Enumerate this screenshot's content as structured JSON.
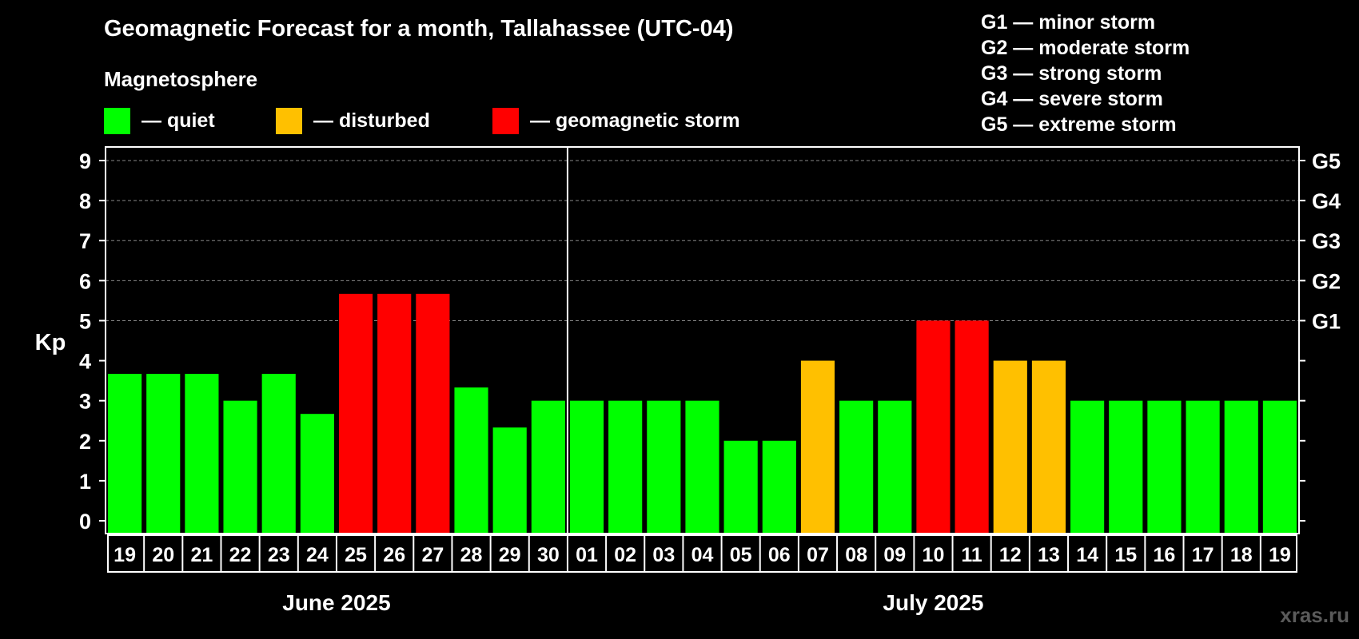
{
  "title": "Geomagnetic Forecast for a month, Tallahassee (UTC-04)",
  "subtitle": "Magnetosphere",
  "legend": [
    {
      "label": "— quiet",
      "color": "#00ff00"
    },
    {
      "label": "— disturbed",
      "color": "#ffc000"
    },
    {
      "label": "— geomagnetic storm",
      "color": "#ff0000"
    }
  ],
  "g_scale_legend": [
    "G1 — minor storm",
    "G2 — moderate storm",
    "G3 — strong storm",
    "G4 — severe storm",
    "G5 — extreme storm"
  ],
  "watermark": "xras.ru",
  "colors": {
    "quiet": "#00ff00",
    "disturbed": "#ffc000",
    "storm": "#ff0000",
    "background": "#000000",
    "grid": "#888888"
  },
  "chart_data": {
    "type": "bar",
    "ylabel": "Kp",
    "ylim": [
      0,
      9
    ],
    "yticks": [
      "0",
      "1",
      "2",
      "3",
      "4",
      "5",
      "6",
      "7",
      "8",
      "9"
    ],
    "right_axis_labels": [
      {
        "kp": 5,
        "label": "G1"
      },
      {
        "kp": 6,
        "label": "G2"
      },
      {
        "kp": 7,
        "label": "G3"
      },
      {
        "kp": 8,
        "label": "G4"
      },
      {
        "kp": 9,
        "label": "G5"
      }
    ],
    "grid": true,
    "months": [
      {
        "label": "June 2025",
        "first_index": 0,
        "count": 12
      },
      {
        "label": "July 2025",
        "first_index": 12,
        "count": 19
      }
    ],
    "categories": [
      "19",
      "20",
      "21",
      "22",
      "23",
      "24",
      "25",
      "26",
      "27",
      "28",
      "29",
      "30",
      "01",
      "02",
      "03",
      "04",
      "05",
      "06",
      "07",
      "08",
      "09",
      "10",
      "11",
      "12",
      "13",
      "14",
      "15",
      "16",
      "17",
      "18",
      "19"
    ],
    "values": [
      3.67,
      3.67,
      3.67,
      3.0,
      3.67,
      2.67,
      5.67,
      5.67,
      5.67,
      3.33,
      2.33,
      3.0,
      3.0,
      3.0,
      3.0,
      3.0,
      2.0,
      2.0,
      4.0,
      3.0,
      3.0,
      5.0,
      5.0,
      4.0,
      4.0,
      3.0,
      3.0,
      3.0,
      3.0,
      3.0,
      3.0
    ],
    "levels": [
      "quiet",
      "quiet",
      "quiet",
      "quiet",
      "quiet",
      "quiet",
      "storm",
      "storm",
      "storm",
      "quiet",
      "quiet",
      "quiet",
      "quiet",
      "quiet",
      "quiet",
      "quiet",
      "quiet",
      "quiet",
      "disturbed",
      "quiet",
      "quiet",
      "storm",
      "storm",
      "disturbed",
      "disturbed",
      "quiet",
      "quiet",
      "quiet",
      "quiet",
      "quiet",
      "quiet"
    ]
  }
}
